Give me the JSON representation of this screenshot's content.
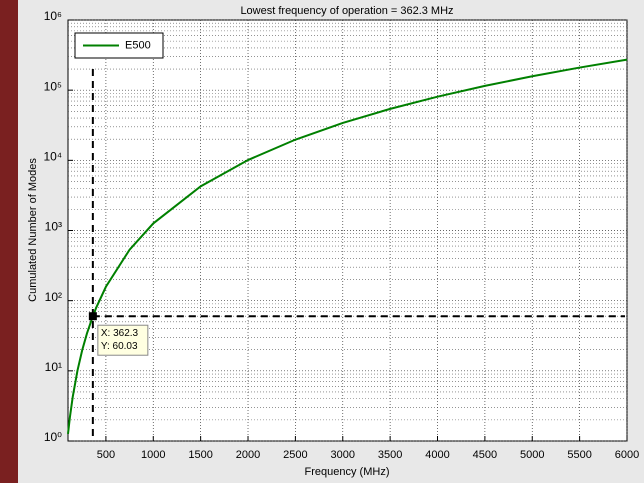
{
  "chart_data": {
    "type": "line",
    "title": "Lowest frequency of operation = 362.3 MHz",
    "x_label": "Frequency (MHz)",
    "y_label": "Cumulated Number of Modes",
    "x": [
      100,
      120,
      150,
      200,
      250,
      300,
      362.3,
      400,
      500,
      750,
      1000,
      1500,
      2000,
      2500,
      3000,
      3500,
      4000,
      4500,
      5000,
      5500,
      6000
    ],
    "series": [
      {
        "name": "E500",
        "color": "#008000",
        "values": [
          1.262,
          2.18,
          4.26,
          10.1,
          19.72,
          34.08,
          60.03,
          80.79,
          157.8,
          532.5,
          1262,
          4260,
          10099,
          19723,
          34082,
          54121,
          80788,
          115026,
          157788,
          210016,
          272657
        ]
      }
    ],
    "xlim": [
      100,
      6000
    ],
    "xticks": [
      500,
      1000,
      1500,
      2000,
      2500,
      3000,
      3500,
      4000,
      4500,
      5000,
      5500,
      6000
    ],
    "ylim": [
      1,
      1000000
    ],
    "yticks": [
      {
        "value": 1,
        "label": "10⁰"
      },
      {
        "value": 10,
        "label": "10¹"
      },
      {
        "value": 100,
        "label": "10²"
      },
      {
        "value": 1000,
        "label": "10³"
      },
      {
        "value": 10000,
        "label": "10⁴"
      },
      {
        "value": 100000,
        "label": "10⁵"
      },
      {
        "value": 1000000,
        "label": "10⁶"
      }
    ],
    "y_log": true,
    "grid": true,
    "minor_grid": true,
    "legend": "upper-left",
    "crosshair": {
      "x": 362.3,
      "y": 60.03
    },
    "datatip": {
      "x_text": "X: 362.3",
      "y_text": "Y: 60.03"
    }
  }
}
